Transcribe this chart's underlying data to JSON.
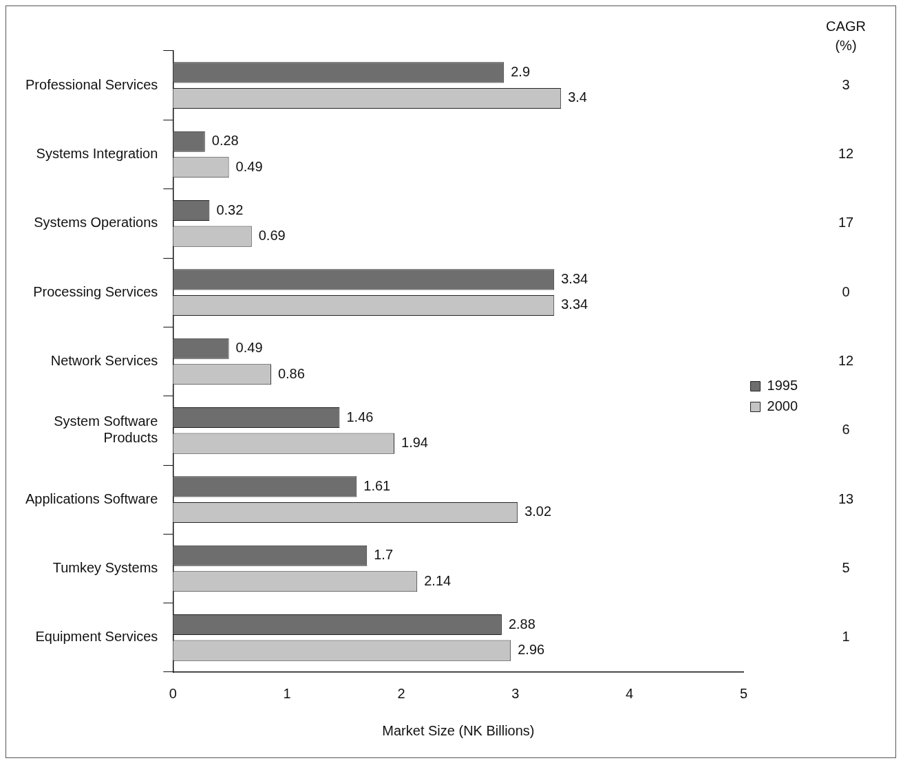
{
  "chart_data": {
    "type": "bar",
    "orientation": "horizontal",
    "xlabel": "Market Size (NK Billions)",
    "categories": [
      "Professional Services",
      "Systems Integration",
      "Systems Operations",
      "Processing Services",
      "Network Services",
      "System Software Products",
      "Applications Software",
      "Tumkey Systems",
      "Equipment Services"
    ],
    "series": [
      {
        "name": "1995",
        "color": "#6e6e6e",
        "values": [
          2.9,
          0.28,
          0.32,
          3.34,
          0.49,
          1.46,
          1.61,
          1.7,
          2.88
        ]
      },
      {
        "name": "2000",
        "color": "#c4c4c4",
        "values": [
          3.4,
          0.49,
          0.69,
          3.34,
          0.86,
          1.94,
          3.02,
          2.14,
          2.96
        ]
      }
    ],
    "xlim": [
      0,
      5
    ],
    "xticks": [
      0,
      1,
      2,
      3,
      4,
      5
    ],
    "grid": false,
    "legend": "right",
    "data_labels": true,
    "annotations": [
      "CAGR (%)",
      "3",
      "12",
      "17",
      "0",
      "12",
      "6",
      "13",
      "5",
      "1"
    ]
  }
}
